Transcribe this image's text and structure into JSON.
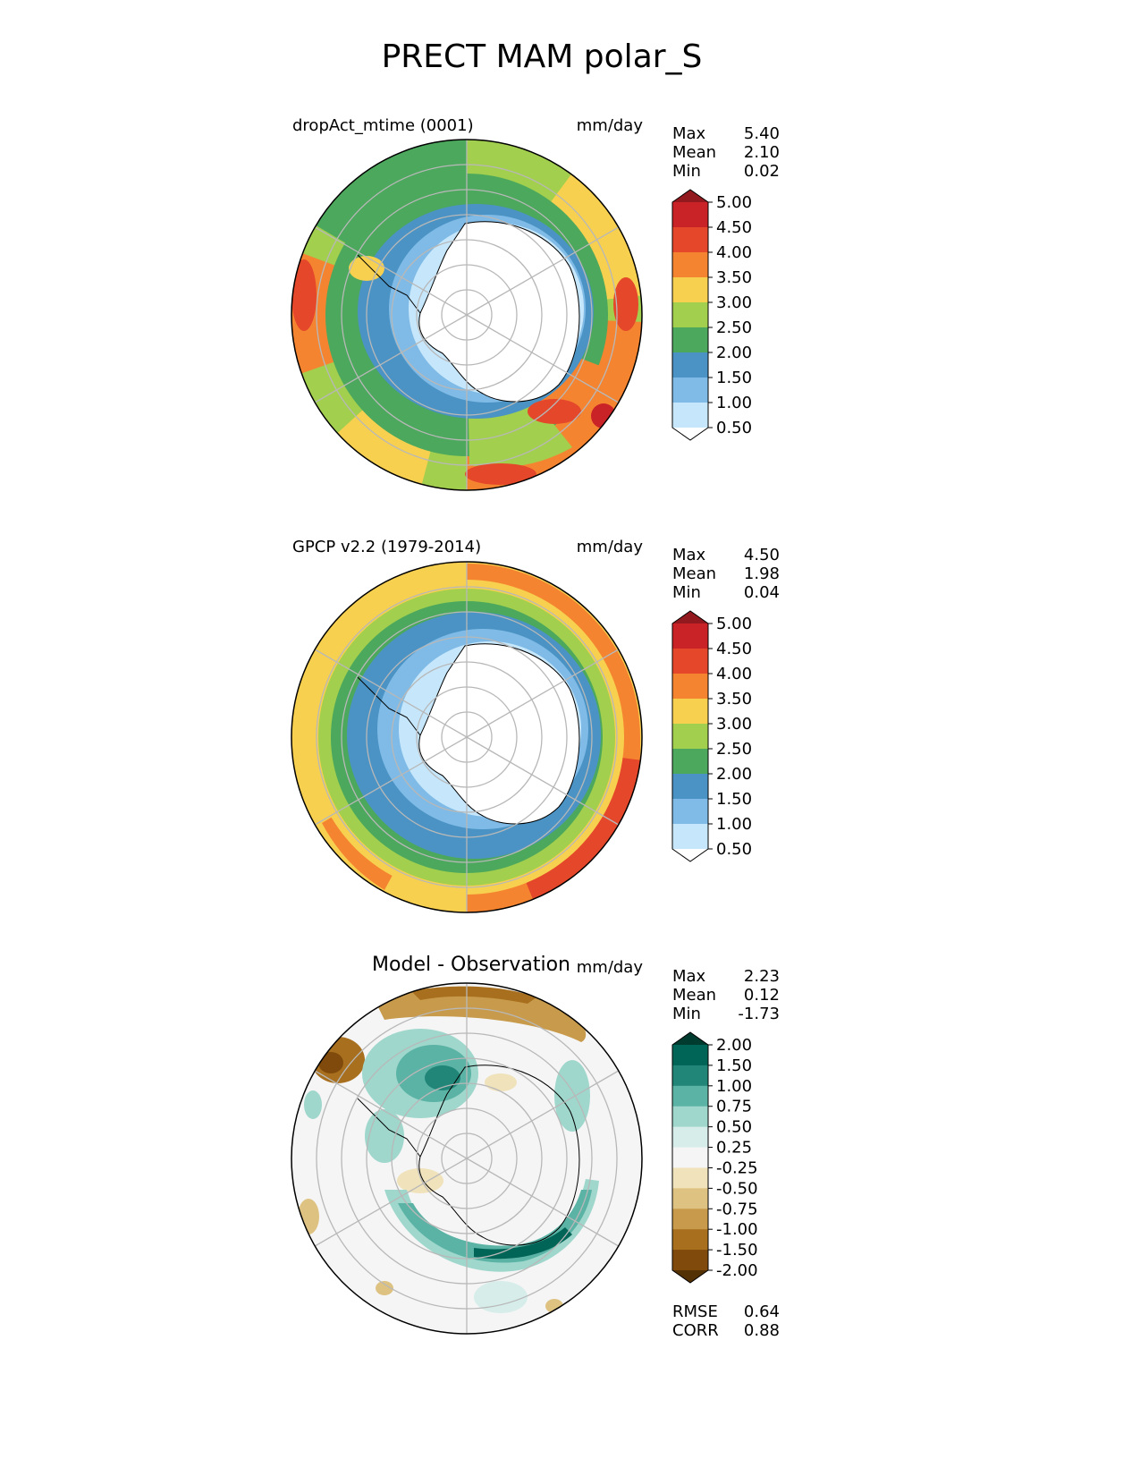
{
  "title": "PRECT MAM polar_S",
  "panels": [
    {
      "label": "dropAct_mtime (0001)",
      "units": "mm/day",
      "stats": [
        {
          "name": "Max",
          "value": "5.40"
        },
        {
          "name": "Mean",
          "value": "2.10"
        },
        {
          "name": "Min",
          "value": "0.02"
        }
      ],
      "colorbar": {
        "ticks": [
          "0.50",
          "1.00",
          "1.50",
          "2.00",
          "2.50",
          "3.00",
          "3.50",
          "4.00",
          "4.50",
          "5.00"
        ],
        "colors": [
          "#ffffff",
          "#c6e7fb",
          "#7fbbe6",
          "#4a93c4",
          "#4ba85c",
          "#a2cf4e",
          "#f7d04f",
          "#f58431",
          "#e4472a",
          "#c92227",
          "#921a1e"
        ]
      }
    },
    {
      "label": "GPCP v2.2 (1979-2014)",
      "units": "mm/day",
      "stats": [
        {
          "name": "Max",
          "value": "4.50"
        },
        {
          "name": "Mean",
          "value": "1.98"
        },
        {
          "name": "Min",
          "value": "0.04"
        }
      ],
      "colorbar": {
        "ticks": [
          "0.50",
          "1.00",
          "1.50",
          "2.00",
          "2.50",
          "3.00",
          "3.50",
          "4.00",
          "4.50",
          "5.00"
        ],
        "colors": [
          "#ffffff",
          "#c6e7fb",
          "#7fbbe6",
          "#4a93c4",
          "#4ba85c",
          "#a2cf4e",
          "#f7d04f",
          "#f58431",
          "#e4472a",
          "#c92227",
          "#921a1e"
        ]
      }
    },
    {
      "label": "Model - Observation",
      "units": "mm/day",
      "stats": [
        {
          "name": "Max",
          "value": "2.23"
        },
        {
          "name": "Mean",
          "value": "0.12"
        },
        {
          "name": "Min",
          "value": "-1.73"
        }
      ],
      "colorbar": {
        "ticks": [
          "-2.00",
          "-1.50",
          "-1.00",
          "-0.75",
          "-0.50",
          "-0.25",
          "0.25",
          "0.50",
          "0.75",
          "1.00",
          "1.50",
          "2.00"
        ],
        "colors": [
          "#543005",
          "#7f4a0b",
          "#a8701e",
          "#c89b4c",
          "#dec282",
          "#f0e2bb",
          "#f5f5f5",
          "#d6ede9",
          "#9fd7cc",
          "#5bb3a5",
          "#218578",
          "#006457",
          "#003b30"
        ]
      },
      "metrics": [
        {
          "name": "RMSE",
          "value": "0.64"
        },
        {
          "name": "CORR",
          "value": "0.88"
        }
      ]
    }
  ]
}
